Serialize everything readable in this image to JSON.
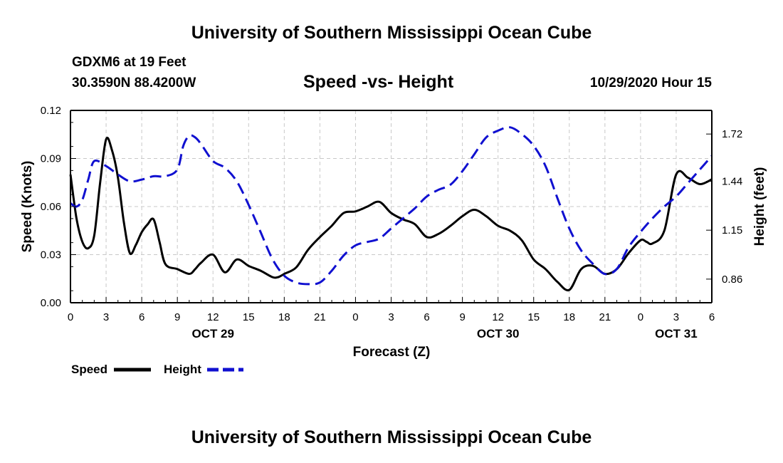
{
  "page": {
    "title_top": "University of Southern Mississippi Ocean Cube",
    "title_bottom": "University of Southern Mississippi Ocean Cube",
    "station": "GDXM6 at 19 Feet",
    "location": "30.3590N 88.4200W",
    "subtitle": "Speed -vs- Height",
    "timestamp": "10/29/2020 Hour 15"
  },
  "colors": {
    "speed": "#000000",
    "height": "#1010d0",
    "grid": "#c8c8c8"
  },
  "chart_data": {
    "type": "line",
    "title": "Speed -vs- Height",
    "xlabel": "Forecast (Z)",
    "ylabel_left": "Speed (Knots)",
    "ylabel_right": "Height (feet)",
    "x_range": [
      0,
      54
    ],
    "x_tick_values": [
      0,
      3,
      6,
      9,
      12,
      15,
      18,
      21,
      24,
      27,
      30,
      33,
      36,
      39,
      42,
      45,
      48,
      51,
      54
    ],
    "x_tick_labels": [
      "0",
      "3",
      "6",
      "9",
      "12",
      "15",
      "18",
      "21",
      "0",
      "3",
      "6",
      "9",
      "12",
      "15",
      "18",
      "21",
      "0",
      "3",
      "6"
    ],
    "date_labels": [
      {
        "x": 12,
        "text": "OCT 29"
      },
      {
        "x": 36,
        "text": "OCT 30"
      },
      {
        "x": 51,
        "text": "OCT 31"
      }
    ],
    "y_left_range": [
      0,
      0.12
    ],
    "y_left_ticks": [
      0,
      0.03,
      0.06,
      0.09,
      0.12
    ],
    "y_left_tick_labels": [
      "0.00",
      "0.03",
      "0.06",
      "0.09",
      "0.12"
    ],
    "y_right_range": [
      0.72,
      1.86
    ],
    "y_right_ticks": [
      0.86,
      1.15,
      1.44,
      1.72
    ],
    "y_right_tick_labels": [
      "0.86",
      "1.15",
      "1.44",
      "1.72"
    ],
    "grid": true,
    "legend": [
      {
        "name": "Speed",
        "style": "solid"
      },
      {
        "name": "Height",
        "style": "dashed"
      }
    ],
    "series": [
      {
        "name": "Speed",
        "axis": "left",
        "style": "solid",
        "x": [
          0,
          0.5,
          1,
          1.5,
          2,
          2.5,
          3,
          3.5,
          4,
          4.5,
          5,
          5.5,
          6,
          6.5,
          7,
          7.5,
          8,
          9,
          10,
          10.5,
          11,
          12,
          13,
          14,
          15,
          16,
          17,
          17.5,
          18,
          19,
          20,
          21,
          22,
          23,
          24,
          25,
          26,
          27,
          28,
          29,
          30,
          31,
          32,
          33,
          34,
          35,
          36,
          37,
          38,
          39,
          40,
          41,
          42,
          43,
          44,
          45,
          46,
          47,
          48,
          48.5,
          49,
          50,
          51,
          52,
          53,
          54
        ],
        "values": [
          0.08,
          0.053,
          0.038,
          0.034,
          0.042,
          0.075,
          0.102,
          0.095,
          0.078,
          0.05,
          0.031,
          0.036,
          0.044,
          0.049,
          0.052,
          0.038,
          0.024,
          0.021,
          0.018,
          0.021,
          0.025,
          0.03,
          0.019,
          0.027,
          0.023,
          0.02,
          0.016,
          0.016,
          0.018,
          0.022,
          0.033,
          0.041,
          0.048,
          0.056,
          0.057,
          0.06,
          0.063,
          0.056,
          0.052,
          0.049,
          0.041,
          0.043,
          0.048,
          0.054,
          0.058,
          0.054,
          0.048,
          0.045,
          0.039,
          0.027,
          0.021,
          0.013,
          0.008,
          0.021,
          0.023,
          0.018,
          0.021,
          0.031,
          0.039,
          0.038,
          0.037,
          0.045,
          0.08,
          0.078,
          0.074,
          0.077
        ]
      },
      {
        "name": "Height",
        "axis": "right",
        "style": "dashed",
        "x": [
          0,
          0.5,
          1,
          1.5,
          2,
          3,
          4,
          5,
          6,
          7,
          8,
          9,
          9.5,
          10,
          10.5,
          11,
          12,
          13,
          14,
          15,
          16,
          17,
          18,
          19,
          20,
          21,
          22,
          23,
          24,
          25,
          26,
          27,
          28,
          29,
          30,
          31,
          32,
          33,
          34,
          35,
          36,
          37,
          38,
          39,
          40,
          41,
          42,
          43,
          44,
          45,
          46,
          47,
          48,
          49,
          50,
          51,
          52,
          53,
          54
        ],
        "values": [
          1.31,
          1.29,
          1.33,
          1.45,
          1.56,
          1.53,
          1.48,
          1.44,
          1.45,
          1.47,
          1.47,
          1.51,
          1.65,
          1.71,
          1.7,
          1.66,
          1.56,
          1.52,
          1.44,
          1.3,
          1.14,
          0.98,
          0.88,
          0.84,
          0.83,
          0.84,
          0.91,
          1.0,
          1.06,
          1.08,
          1.1,
          1.16,
          1.22,
          1.28,
          1.35,
          1.39,
          1.42,
          1.5,
          1.6,
          1.7,
          1.74,
          1.76,
          1.72,
          1.65,
          1.53,
          1.34,
          1.16,
          1.03,
          0.95,
          0.89,
          0.92,
          1.05,
          1.14,
          1.22,
          1.29,
          1.35,
          1.43,
          1.51,
          1.59
        ]
      }
    ]
  }
}
